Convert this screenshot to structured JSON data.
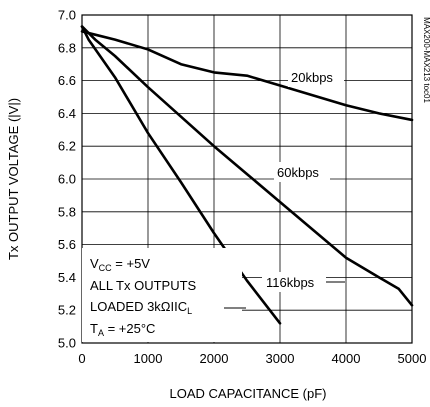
{
  "chart_data": {
    "type": "line",
    "xlabel": "LOAD CAPACITANCE (pF)",
    "ylabel": "Tx OUTPUT VOLTAGE (|V|)",
    "xlim": [
      0,
      5000
    ],
    "ylim": [
      5.0,
      7.0
    ],
    "xticks": [
      0,
      1000,
      2000,
      3000,
      4000,
      5000
    ],
    "xtick_labels": [
      "0",
      "1000",
      "2000",
      "3000",
      "4000",
      "5000"
    ],
    "yticks": [
      5.0,
      5.2,
      5.4,
      5.6,
      5.8,
      6.0,
      6.2,
      6.4,
      6.6,
      6.8,
      7.0
    ],
    "ytick_labels": [
      "5.0",
      "5.2",
      "5.4",
      "5.6",
      "5.8",
      "6.0",
      "6.2",
      "6.4",
      "6.6",
      "6.8",
      "7.0"
    ],
    "grid": true,
    "figure_code": "MAX200-MAX213 toc01",
    "conditions": [
      "V_CC = +5V",
      "ALL Tx OUTPUTS",
      "LOADED 3kΩ||C_L",
      "T_A = +25°C"
    ],
    "series": [
      {
        "name": "20kbps",
        "x": [
          0,
          200,
          500,
          1000,
          1500,
          2000,
          2500,
          3000,
          3500,
          4000,
          4500,
          5000
        ],
        "y": [
          6.9,
          6.88,
          6.85,
          6.79,
          6.7,
          6.65,
          6.63,
          6.57,
          6.51,
          6.45,
          6.4,
          6.36
        ]
      },
      {
        "name": "60kbps",
        "x": [
          0,
          200,
          500,
          1000,
          1500,
          2000,
          2500,
          3000,
          3500,
          4000,
          4500,
          4800,
          5000
        ],
        "y": [
          6.93,
          6.85,
          6.75,
          6.56,
          6.38,
          6.2,
          6.03,
          5.86,
          5.69,
          5.52,
          5.4,
          5.33,
          5.23
        ]
      },
      {
        "name": "116kbps",
        "x": [
          0,
          100,
          500,
          1000,
          1500,
          2000,
          2500,
          3000
        ],
        "y": [
          6.93,
          6.85,
          6.62,
          6.28,
          5.98,
          5.67,
          5.38,
          5.12
        ]
      }
    ]
  },
  "labels": {
    "s20": "20kbps",
    "s60": "60kbps",
    "s116": "116kbps"
  },
  "notes": {
    "vcc_main": "V",
    "vcc_sub": "CC",
    "vcc_rest": " = +5V",
    "outputs": "ALL Tx OUTPUTS",
    "loaded_main": "LOADED 3kΩIIC",
    "loaded_sub": "L",
    "ta_main": "T",
    "ta_sub": "A",
    "ta_rest": " = +25°C"
  }
}
